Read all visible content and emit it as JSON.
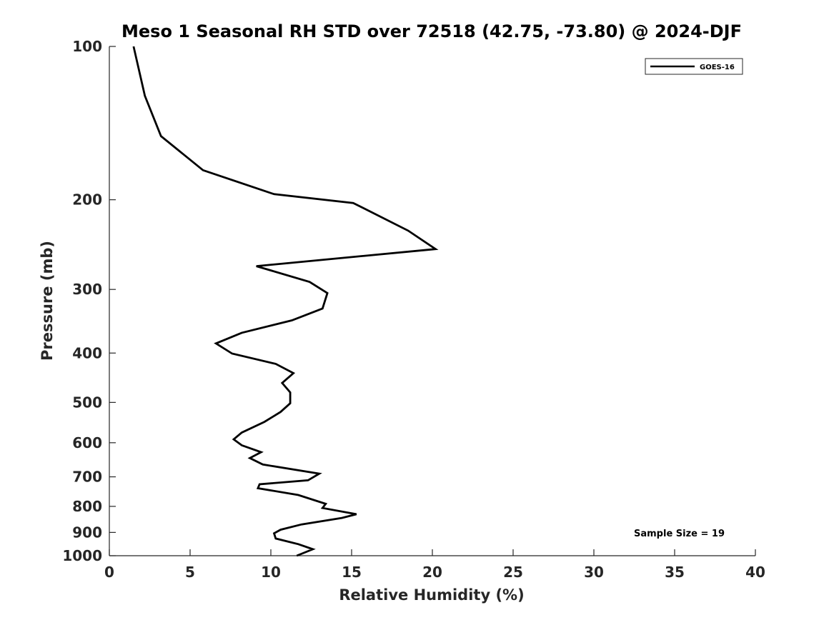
{
  "chart_data": {
    "type": "line",
    "title": "Meso 1 Seasonal RH STD over 72518 (42.75, -73.80) @ 2024-DJF",
    "xlabel": "Relative Humidity (%)",
    "ylabel": "Pressure (mb)",
    "xlim": [
      0,
      40
    ],
    "ylim": [
      100,
      1000
    ],
    "yscale": "log",
    "xticks": [
      "0",
      "5",
      "10",
      "15",
      "20",
      "25",
      "30",
      "35",
      "40"
    ],
    "xtick_values": [
      0,
      5,
      10,
      15,
      20,
      25,
      30,
      35,
      40
    ],
    "yticks": [
      "100",
      "200",
      "300",
      "400",
      "500",
      "600",
      "700",
      "800",
      "900",
      "1000"
    ],
    "ytick_values": [
      100,
      200,
      300,
      400,
      500,
      600,
      700,
      800,
      900,
      1000
    ],
    "grid": false,
    "legend_position": "top-right",
    "series": [
      {
        "name": "GOES-16",
        "color": "#000000",
        "points": [
          [
            1.5,
            100
          ],
          [
            2.2,
            125
          ],
          [
            3.2,
            150
          ],
          [
            5.8,
            175
          ],
          [
            10.2,
            195
          ],
          [
            15.1,
            203
          ],
          [
            18.5,
            230
          ],
          [
            20.2,
            250
          ],
          [
            9.1,
            270
          ],
          [
            12.4,
            290
          ],
          [
            13.5,
            305
          ],
          [
            13.2,
            327
          ],
          [
            11.3,
            345
          ],
          [
            8.2,
            365
          ],
          [
            6.6,
            383
          ],
          [
            7.6,
            401
          ],
          [
            10.3,
            420
          ],
          [
            11.4,
            438
          ],
          [
            10.7,
            458
          ],
          [
            11.2,
            478
          ],
          [
            11.2,
            502
          ],
          [
            10.6,
            522
          ],
          [
            9.6,
            546
          ],
          [
            8.2,
            573
          ],
          [
            7.7,
            591
          ],
          [
            8.2,
            607
          ],
          [
            9.4,
            626
          ],
          [
            8.7,
            643
          ],
          [
            9.5,
            662
          ],
          [
            13.0,
            690
          ],
          [
            12.3,
            711
          ],
          [
            9.3,
            724
          ],
          [
            9.2,
            737
          ],
          [
            11.7,
            760
          ],
          [
            13.4,
            791
          ],
          [
            13.2,
            806
          ],
          [
            15.3,
            829
          ],
          [
            14.4,
            843
          ],
          [
            11.9,
            868
          ],
          [
            10.6,
            889
          ],
          [
            10.2,
            904
          ],
          [
            10.3,
            925
          ],
          [
            11.7,
            949
          ],
          [
            12.6,
            971
          ],
          [
            11.6,
            1000
          ]
        ]
      }
    ],
    "annotation": "Sample Size = 19"
  }
}
